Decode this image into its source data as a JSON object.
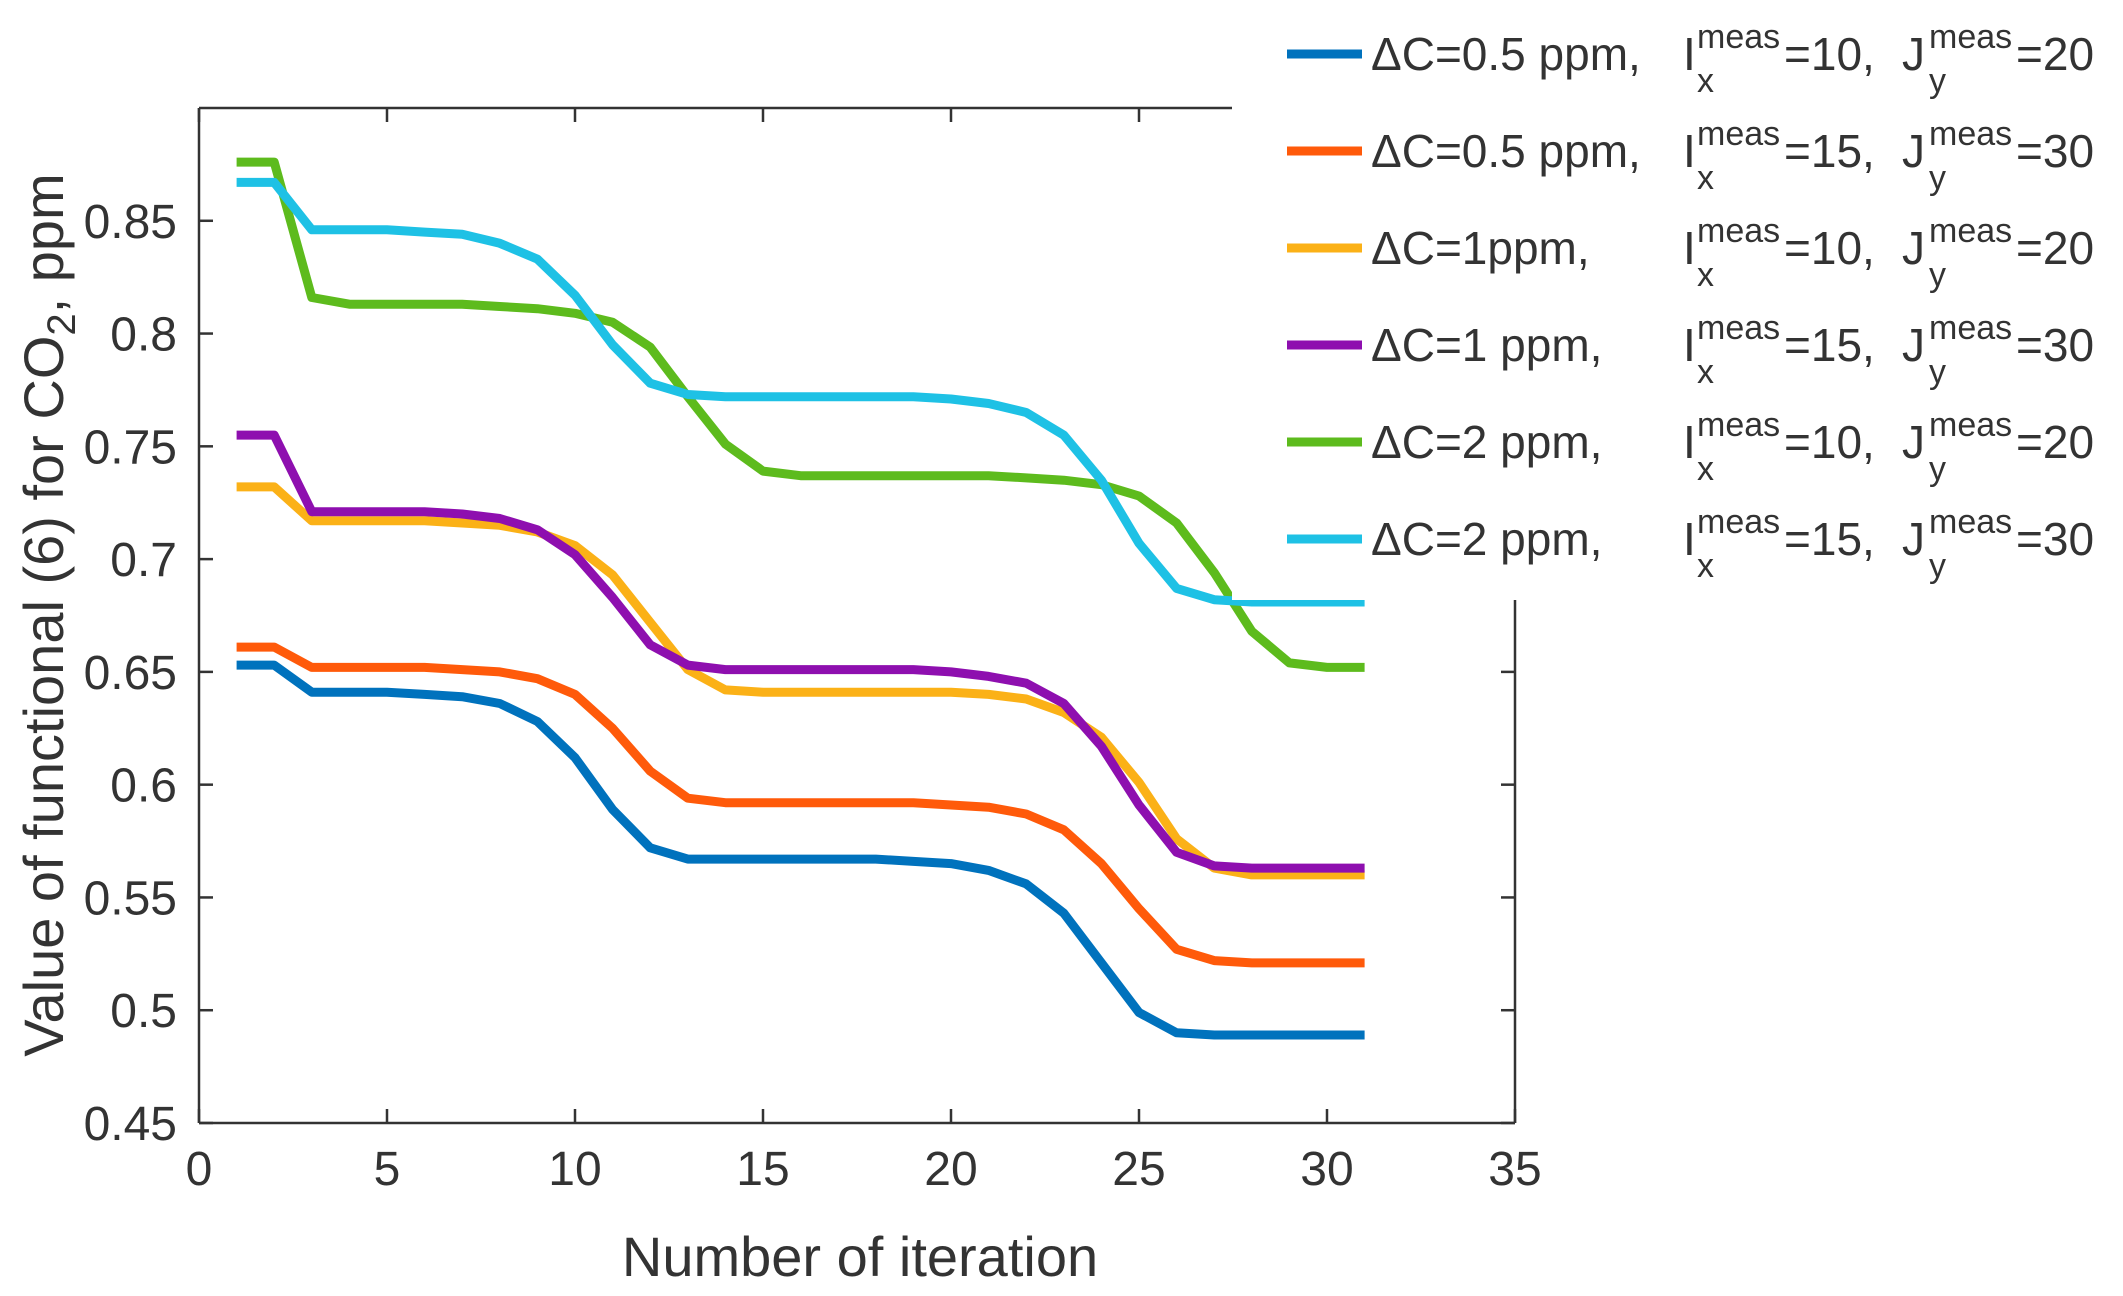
{
  "chart_data": {
    "type": "line",
    "xlabel": "Number of iteration",
    "ylabel": {
      "main": "Value of functional (6) for CO",
      "sub": "2",
      "tail": ", ppm"
    },
    "xlim": [
      0,
      35
    ],
    "ylim": [
      0.45,
      0.9
    ],
    "xticks": [
      "0",
      "5",
      "10",
      "15",
      "20",
      "25",
      "30",
      "35"
    ],
    "yticks": [
      "0.45",
      "0.5",
      "0.55",
      "0.6",
      "0.65",
      "0.7",
      "0.75",
      "0.8",
      "0.85"
    ],
    "grid": false,
    "legend_position": "top-right",
    "x": [
      1,
      2,
      3,
      4,
      5,
      6,
      7,
      8,
      9,
      10,
      11,
      12,
      13,
      14,
      15,
      16,
      17,
      18,
      19,
      20,
      21,
      22,
      23,
      24,
      25,
      26,
      27,
      28,
      29,
      30,
      31
    ],
    "series": [
      {
        "name": "ΔC=0.5 ppm, I_x^meas=10, J_y^meas=20",
        "legend": {
          "dc": "ΔC=0.5 ppm,",
          "ix": "10",
          "jy": "20"
        },
        "color": "#0072BD",
        "values": [
          0.653,
          0.653,
          0.641,
          0.641,
          0.641,
          0.64,
          0.639,
          0.636,
          0.628,
          0.612,
          0.589,
          0.572,
          0.567,
          0.567,
          0.567,
          0.567,
          0.567,
          0.567,
          0.566,
          0.565,
          0.562,
          0.556,
          0.543,
          0.521,
          0.499,
          0.49,
          0.489,
          0.489,
          0.489,
          0.489,
          0.489
        ]
      },
      {
        "name": "ΔC=0.5 ppm, I_x^meas=15, J_y^meas=30",
        "legend": {
          "dc": "ΔC=0.5 ppm,",
          "ix": "15",
          "jy": "30"
        },
        "color": "#FF5A0A",
        "values": [
          0.661,
          0.661,
          0.652,
          0.652,
          0.652,
          0.652,
          0.651,
          0.65,
          0.647,
          0.64,
          0.625,
          0.606,
          0.594,
          0.592,
          0.592,
          0.592,
          0.592,
          0.592,
          0.592,
          0.591,
          0.59,
          0.587,
          0.58,
          0.565,
          0.545,
          0.527,
          0.522,
          0.521,
          0.521,
          0.521,
          0.521
        ]
      },
      {
        "name": "ΔC=1ppm, I_x^meas=10, J_y^meas=20",
        "legend": {
          "dc": "ΔC=1ppm,",
          "ix": "10",
          "jy": "20"
        },
        "color": "#FBB117",
        "values": [
          0.732,
          0.732,
          0.717,
          0.717,
          0.717,
          0.717,
          0.716,
          0.715,
          0.712,
          0.706,
          0.693,
          0.672,
          0.651,
          0.642,
          0.641,
          0.641,
          0.641,
          0.641,
          0.641,
          0.641,
          0.64,
          0.638,
          0.632,
          0.621,
          0.601,
          0.576,
          0.563,
          0.56,
          0.56,
          0.56,
          0.56
        ]
      },
      {
        "name": "ΔC=1 ppm, I_x^meas=15, J_y^meas=30",
        "legend": {
          "dc": "ΔC=1 ppm,",
          "ix": "15",
          "jy": "30"
        },
        "color": "#8E0FAF",
        "values": [
          0.755,
          0.755,
          0.721,
          0.721,
          0.721,
          0.721,
          0.72,
          0.718,
          0.713,
          0.702,
          0.683,
          0.662,
          0.653,
          0.651,
          0.651,
          0.651,
          0.651,
          0.651,
          0.651,
          0.65,
          0.648,
          0.645,
          0.636,
          0.617,
          0.591,
          0.57,
          0.564,
          0.563,
          0.563,
          0.563,
          0.563
        ]
      },
      {
        "name": "ΔC=2 ppm, I_x^meas=10, J_y^meas=20",
        "legend": {
          "dc": "ΔC=2 ppm,",
          "ix": "10",
          "jy": "20"
        },
        "color": "#5DBB1D",
        "values": [
          0.876,
          0.876,
          0.816,
          0.813,
          0.813,
          0.813,
          0.813,
          0.812,
          0.811,
          0.809,
          0.805,
          0.794,
          0.772,
          0.751,
          0.739,
          0.737,
          0.737,
          0.737,
          0.737,
          0.737,
          0.737,
          0.736,
          0.735,
          0.733,
          0.728,
          0.716,
          0.694,
          0.668,
          0.654,
          0.652,
          0.652
        ]
      },
      {
        "name": "ΔC=2 ppm, I_x^meas=15, J_y^meas=30",
        "legend": {
          "dc": "ΔC=2 ppm,",
          "ix": "15",
          "jy": "30"
        },
        "color": "#1EC1E5",
        "values": [
          0.867,
          0.867,
          0.846,
          0.846,
          0.846,
          0.845,
          0.844,
          0.84,
          0.833,
          0.817,
          0.795,
          0.778,
          0.773,
          0.772,
          0.772,
          0.772,
          0.772,
          0.772,
          0.772,
          0.771,
          0.769,
          0.765,
          0.755,
          0.735,
          0.707,
          0.687,
          0.682,
          0.681,
          0.681,
          0.681,
          0.681
        ]
      }
    ]
  }
}
